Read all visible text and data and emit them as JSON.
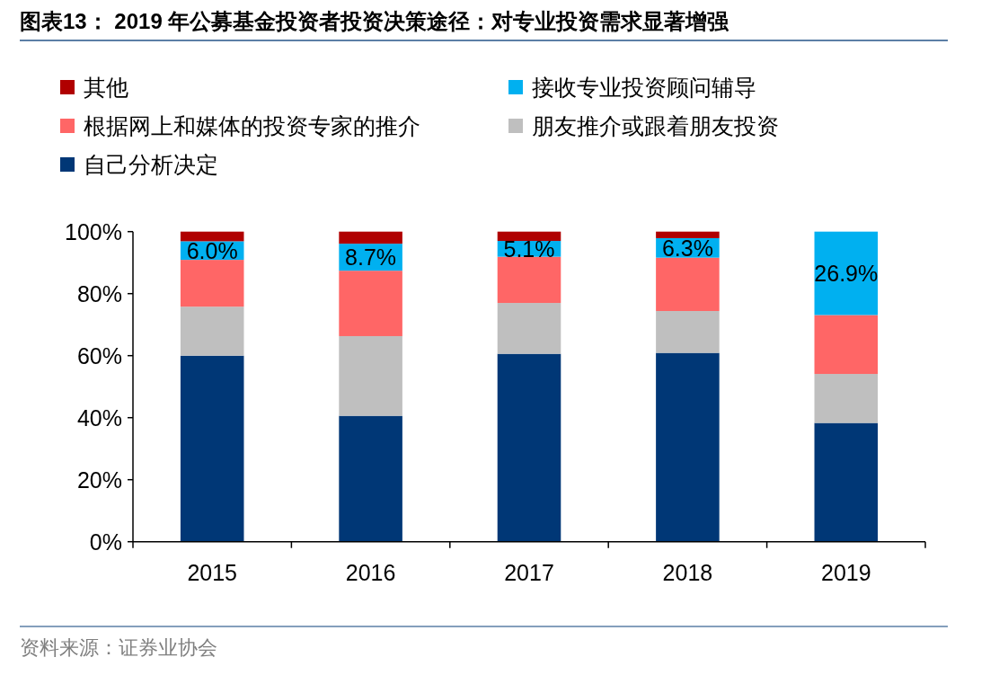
{
  "chart_data": {
    "type": "bar",
    "stacked": true,
    "title": "图表13：  2019 年公募基金投资者投资决策途径：对专业投资需求显著增强",
    "categories": [
      "2015",
      "2016",
      "2017",
      "2018",
      "2019"
    ],
    "series": [
      {
        "name": "自己分析决定",
        "color": "#003776",
        "values": [
          60.0,
          40.6,
          60.6,
          60.9,
          38.3
        ]
      },
      {
        "name": "朋友推介或跟着朋友投资",
        "color": "#bfbfbf",
        "values": [
          15.8,
          25.7,
          16.4,
          13.5,
          15.8
        ]
      },
      {
        "name": "根据网上和媒体的投资专家的推介",
        "color": "#ff6666",
        "values": [
          15.1,
          21.1,
          14.9,
          17.2,
          19.0
        ]
      },
      {
        "name": "接收专业投资顾问辅导",
        "color": "#00b0f0",
        "values": [
          6.0,
          8.7,
          5.1,
          6.3,
          26.9
        ],
        "value_labels": [
          "6.0%",
          "8.7%",
          "5.1%",
          "6.3%",
          "26.9%"
        ]
      },
      {
        "name": "其他",
        "color": "#b00000",
        "values": [
          3.1,
          3.9,
          3.0,
          2.1,
          0
        ]
      }
    ],
    "ylim": [
      0,
      100
    ],
    "yticks": [
      {
        "value": 0,
        "label": "0%"
      },
      {
        "value": 20,
        "label": "20%"
      },
      {
        "value": 40,
        "label": "40%"
      },
      {
        "value": 60,
        "label": "60%"
      },
      {
        "value": 80,
        "label": "80%"
      },
      {
        "value": 100,
        "label": "100%"
      }
    ],
    "legend": "top",
    "grid": false,
    "annotations": [
      "资料来源：证券业协会"
    ]
  }
}
